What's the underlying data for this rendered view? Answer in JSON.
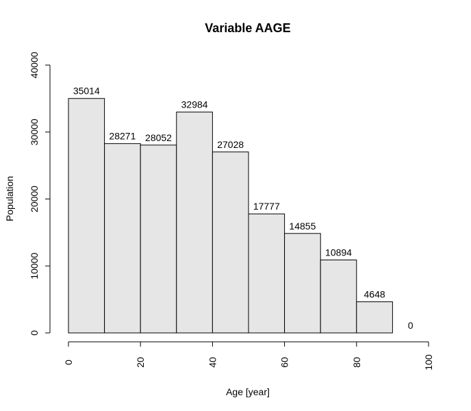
{
  "chart_data": {
    "type": "bar",
    "title": "Variable AAGE",
    "xlabel": "Age [year]",
    "ylabel": "Population",
    "bins": [
      {
        "start": 0,
        "end": 10,
        "value": 35014,
        "label": "35014"
      },
      {
        "start": 10,
        "end": 20,
        "value": 28271,
        "label": "28271"
      },
      {
        "start": 20,
        "end": 30,
        "value": 28052,
        "label": "28052"
      },
      {
        "start": 30,
        "end": 40,
        "value": 32984,
        "label": "32984"
      },
      {
        "start": 40,
        "end": 50,
        "value": 27028,
        "label": "27028"
      },
      {
        "start": 50,
        "end": 60,
        "value": 17777,
        "label": "17777"
      },
      {
        "start": 60,
        "end": 70,
        "value": 14855,
        "label": "14855"
      },
      {
        "start": 70,
        "end": 80,
        "value": 10894,
        "label": "10894"
      },
      {
        "start": 80,
        "end": 90,
        "value": 4648,
        "label": "4648"
      },
      {
        "start": 90,
        "end": 100,
        "value": 0,
        "label": "0"
      }
    ],
    "xlim": [
      0,
      100
    ],
    "ylim": [
      0,
      40000
    ],
    "x_ticks": [
      0,
      20,
      40,
      60,
      80,
      100
    ],
    "x_tick_labels": [
      "0",
      "20",
      "40",
      "60",
      "80",
      "100"
    ],
    "y_ticks": [
      0,
      10000,
      20000,
      30000,
      40000
    ],
    "y_tick_labels": [
      "0",
      "10000",
      "20000",
      "30000",
      "40000"
    ],
    "grid": false,
    "legend": "none",
    "colors": {
      "bar_fill": "#e6e6e6",
      "bar_stroke": "#000000",
      "axis": "#000000",
      "text": "#000000"
    }
  }
}
